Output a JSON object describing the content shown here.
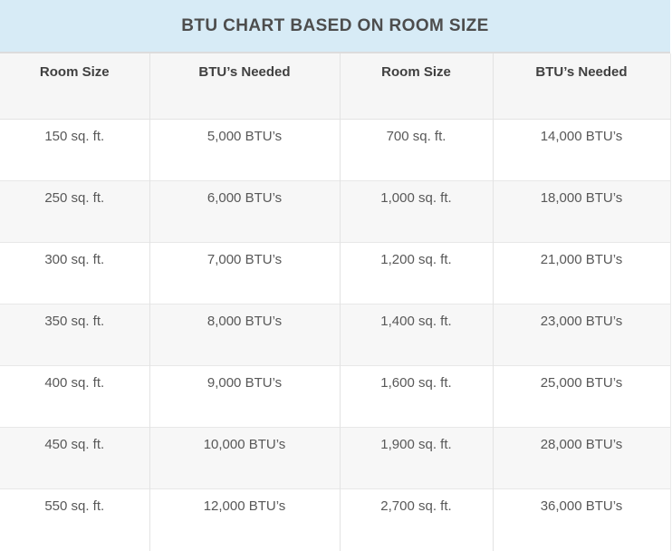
{
  "title": "BTU CHART BASED ON ROOM SIZE",
  "table": {
    "headers": [
      "Room Size",
      "BTU’s Needed",
      "Room Size",
      "BTU’s Needed"
    ],
    "rows": [
      [
        "150 sq. ft.",
        "5,000 BTU’s",
        "700 sq. ft.",
        "14,000 BTU’s"
      ],
      [
        "250 sq. ft.",
        "6,000 BTU’s",
        "1,000 sq. ft.",
        "18,000 BTU’s"
      ],
      [
        "300 sq. ft.",
        "7,000 BTU’s",
        "1,200 sq. ft.",
        "21,000 BTU’s"
      ],
      [
        "350 sq. ft.",
        "8,000 BTU’s",
        "1,400 sq. ft.",
        "23,000 BTU’s"
      ],
      [
        "400 sq. ft.",
        "9,000 BTU’s",
        "1,600 sq. ft.",
        "25,000 BTU’s"
      ],
      [
        "450 sq. ft.",
        "10,000 BTU’s",
        "1,900 sq. ft.",
        "28,000 BTU’s"
      ],
      [
        "550 sq. ft.",
        "12,000 BTU’s",
        "2,700 sq. ft.",
        "36,000 BTU’s"
      ]
    ]
  },
  "chart_data": {
    "type": "table",
    "title": "BTU CHART BASED ON ROOM SIZE",
    "columns": [
      "Room Size",
      "BTU’s Needed",
      "Room Size",
      "BTU’s Needed"
    ],
    "pairs": [
      {
        "room_size_sqft": 150,
        "btus_needed": 5000
      },
      {
        "room_size_sqft": 250,
        "btus_needed": 6000
      },
      {
        "room_size_sqft": 300,
        "btus_needed": 7000
      },
      {
        "room_size_sqft": 350,
        "btus_needed": 8000
      },
      {
        "room_size_sqft": 400,
        "btus_needed": 9000
      },
      {
        "room_size_sqft": 450,
        "btus_needed": 10000
      },
      {
        "room_size_sqft": 550,
        "btus_needed": 12000
      },
      {
        "room_size_sqft": 700,
        "btus_needed": 14000
      },
      {
        "room_size_sqft": 1000,
        "btus_needed": 18000
      },
      {
        "room_size_sqft": 1200,
        "btus_needed": 21000
      },
      {
        "room_size_sqft": 1400,
        "btus_needed": 23000
      },
      {
        "room_size_sqft": 1600,
        "btus_needed": 25000
      },
      {
        "room_size_sqft": 1900,
        "btus_needed": 28000
      },
      {
        "room_size_sqft": 2700,
        "btus_needed": 36000
      }
    ]
  },
  "colors": {
    "title_bg": "#d7ebf6",
    "title_text": "#4d4d4d",
    "title_divider": "#dcdcdc",
    "header_bg": "#f6f6f6",
    "header_text": "#404040",
    "row_white": "#ffffff",
    "row_alt": "#f7f7f7",
    "cell_text": "#585858",
    "border_vertical": "#e3e3e3",
    "border_horizontal": "#e8e8e8"
  }
}
